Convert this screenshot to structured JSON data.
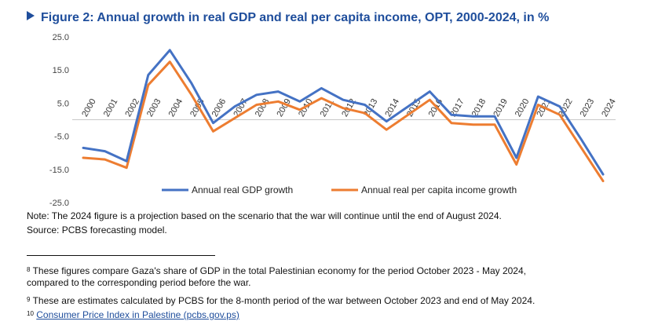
{
  "chart_data": {
    "type": "line",
    "title": "Figure 2: Annual growth in real GDP and real per capita income, OPT, 2000-2024, in %",
    "x": [
      "2000",
      "2001",
      "2002",
      "2003",
      "2004",
      "2005",
      "2006",
      "2007",
      "2008",
      "2009",
      "2010",
      "2011",
      "2012",
      "2013",
      "2014",
      "2015",
      "2016",
      "2017",
      "2018",
      "2019",
      "2020",
      "2021",
      "2022",
      "2023",
      "2024"
    ],
    "series": [
      {
        "name": "Annual real GDP growth",
        "color": "#4472c4",
        "values": [
          -8.5,
          -9.5,
          -12.5,
          13.5,
          21.0,
          11.0,
          -1.0,
          4.0,
          7.5,
          8.5,
          5.5,
          9.5,
          6.0,
          4.5,
          -0.5,
          4.0,
          8.5,
          1.5,
          1.0,
          1.0,
          -11.5,
          7.0,
          4.0,
          -6.0,
          -16.5
        ]
      },
      {
        "name": "Annual real per capita income growth",
        "color": "#ed7d31",
        "values": [
          -11.5,
          -12.0,
          -14.5,
          10.5,
          17.5,
          7.5,
          -3.5,
          0.5,
          4.5,
          5.5,
          3.0,
          6.5,
          3.5,
          2.0,
          -3.0,
          1.5,
          6.0,
          -1.0,
          -1.5,
          -1.5,
          -13.5,
          4.5,
          1.5,
          -8.5,
          -18.5
        ]
      }
    ],
    "yticks": [
      "25.0",
      "15.0",
      "5.0",
      "-5.0",
      "-15.0",
      "-25.0"
    ],
    "ylim": [
      -25,
      25
    ],
    "grid": false,
    "legend_position": "bottom"
  },
  "note": "Note: The 2024 figure is a projection based on the scenario that the war will continue until the end of August 2024.",
  "source": "Source: PCBS forecasting model.",
  "footnotes": {
    "fn8_mark": "8",
    "fn8_line1": "These figures compare Gaza's share of GDP in the total Palestinian economy for the period October 2023 - May 2024,",
    "fn8_line2": "compared to the corresponding period before the war.",
    "fn9_mark": "9",
    "fn9_text": "These are estimates calculated by PCBS for the 8-month period of the war between October 2023 and end of May 2024.",
    "fn10_mark": "10",
    "fn10_link": "Consumer Price Index in Palestine (pcbs.gov.ps)"
  }
}
